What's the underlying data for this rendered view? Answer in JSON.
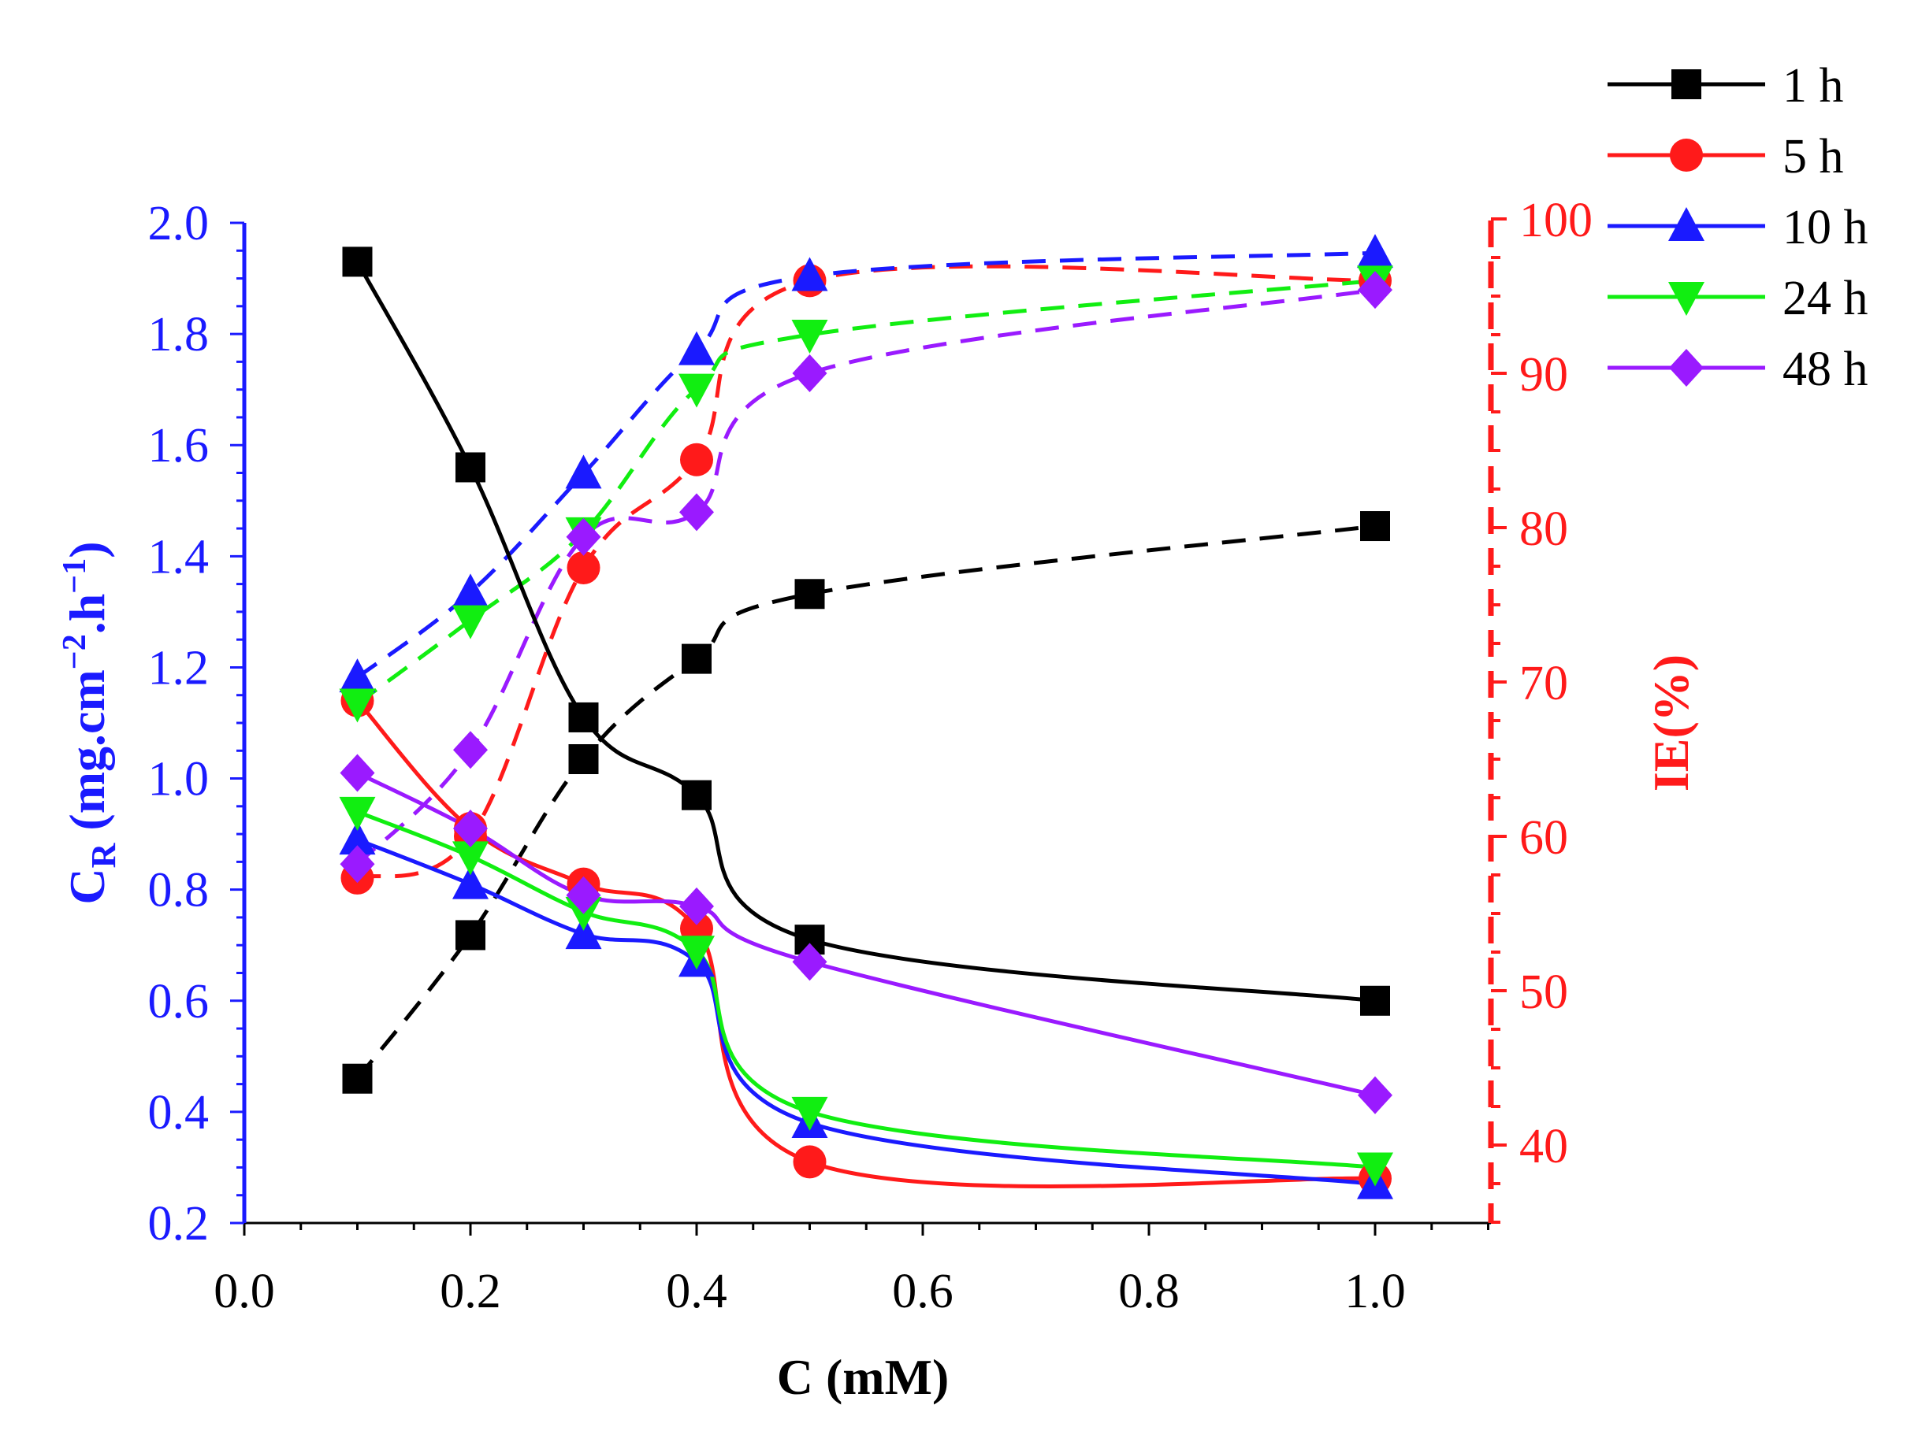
{
  "chart_data": {
    "type": "line",
    "title": "",
    "xlabel": "C (mM)",
    "xlim": [
      0.0,
      1.1
    ],
    "xticks": [
      "0.0",
      "0.2",
      "0.4",
      "0.6",
      "0.8",
      "1.0"
    ],
    "x": [
      0.1,
      0.2,
      0.3,
      0.4,
      0.5,
      1.0
    ],
    "left_axis": {
      "label_main": "C",
      "label_sub": "R",
      "label_rest": " (mg.cm",
      "label_exp1": "−2",
      "label_mid": ".h",
      "label_exp2": "−1",
      "label_close": ")",
      "ylim": [
        0.2,
        2.0
      ],
      "ticks": [
        "0.2",
        "0.4",
        "0.6",
        "0.8",
        "1.0",
        "1.2",
        "1.4",
        "1.6",
        "1.8",
        "2.0"
      ],
      "color": "#1a1aff"
    },
    "right_axis": {
      "label": "IE(%)",
      "ylim": [
        35,
        100
      ],
      "ticks": [
        "40",
        "50",
        "60",
        "70",
        "80",
        "90",
        "100"
      ],
      "color": "#ff1a1a"
    },
    "legend_position": "top-right",
    "series": [
      {
        "name": "1 h",
        "color": "#000000",
        "marker": "square",
        "corrosion_rate": [
          1.93,
          1.56,
          1.11,
          0.97,
          0.71,
          0.6
        ],
        "inhibition_efficiency": [
          44.3,
          53.6,
          65.0,
          71.5,
          75.7,
          80.1
        ]
      },
      {
        "name": "5 h",
        "color": "#ff1a1a",
        "marker": "circle",
        "corrosion_rate": [
          1.14,
          0.91,
          0.81,
          0.73,
          0.31,
          0.28
        ],
        "inhibition_efficiency": [
          57.3,
          60.0,
          77.4,
          84.4,
          96.0,
          96.0
        ]
      },
      {
        "name": "10 h",
        "color": "#1a1aff",
        "marker": "triangle-up",
        "corrosion_rate": [
          0.89,
          0.81,
          0.72,
          0.67,
          0.38,
          0.27
        ],
        "inhibition_efficiency": [
          70.3,
          75.8,
          83.5,
          91.5,
          96.3,
          97.8
        ]
      },
      {
        "name": "24 h",
        "color": "#11ee11",
        "marker": "triangle-down",
        "corrosion_rate": [
          0.94,
          0.86,
          0.76,
          0.69,
          0.4,
          0.3
        ],
        "inhibition_efficiency": [
          68.6,
          74.0,
          79.7,
          89.0,
          92.5,
          96.0
        ]
      },
      {
        "name": "48 h",
        "color": "#9a1aff",
        "marker": "diamond",
        "corrosion_rate": [
          1.01,
          0.91,
          0.79,
          0.77,
          0.67,
          0.43
        ],
        "inhibition_efficiency": [
          58.2,
          65.6,
          79.4,
          81.0,
          90.0,
          95.4
        ]
      }
    ]
  }
}
